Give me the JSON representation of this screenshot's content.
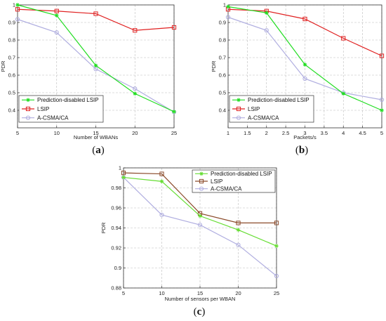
{
  "captions": [
    "(a)",
    "(b)",
    "(c)"
  ],
  "chart_data": [
    {
      "type": "line",
      "xlabel": "Number of WBANs",
      "ylabel": "PDR",
      "xlim": [
        5,
        25
      ],
      "ylim": [
        0.3,
        1
      ],
      "xticks": [
        5,
        10,
        15,
        20,
        25
      ],
      "xtick_labels": [
        "5",
        "10",
        "15",
        "20",
        "25"
      ],
      "yticks": [
        0.4,
        0.5,
        0.6,
        0.7,
        0.8,
        0.9,
        1
      ],
      "ytick_labels": [
        "0.4",
        "0.5",
        "0.6",
        "0.7",
        "0.8",
        "0.9",
        "1"
      ],
      "grid": true,
      "legend_position": "bottom-left",
      "series": [
        {
          "name": "Prediction-disabled LSIP",
          "color": "#22dd22",
          "marker": "star",
          "x": [
            5,
            10,
            15,
            20,
            25
          ],
          "y": [
            1.0,
            0.94,
            0.655,
            0.495,
            0.392
          ]
        },
        {
          "name": "LSIP",
          "color": "#e02020",
          "marker": "square",
          "x": [
            5,
            10,
            15,
            20,
            25
          ],
          "y": [
            0.975,
            0.965,
            0.95,
            0.855,
            0.872
          ]
        },
        {
          "name": "A-CSMA/CA",
          "color": "#b0aee0",
          "marker": "circle",
          "x": [
            5,
            10,
            15,
            20,
            25
          ],
          "y": [
            0.918,
            0.843,
            0.635,
            0.523,
            0.39
          ]
        }
      ]
    },
    {
      "type": "line",
      "xlabel": "Packets/s",
      "ylabel": "PDR",
      "xlim": [
        1,
        5
      ],
      "ylim": [
        0.3,
        1
      ],
      "xticks": [
        1,
        1.5,
        2,
        2.5,
        3,
        3.5,
        4,
        4.5,
        5
      ],
      "xtick_labels": [
        "1",
        "1.5",
        "2",
        "2.5",
        "3",
        "3.5",
        "4",
        "4.5",
        "5"
      ],
      "yticks": [
        0.4,
        0.5,
        0.6,
        0.7,
        0.8,
        0.9,
        1
      ],
      "ytick_labels": [
        "0.4",
        "0.5",
        "0.6",
        "0.7",
        "0.8",
        "0.9",
        "1"
      ],
      "grid": true,
      "legend_position": "bottom-left",
      "series": [
        {
          "name": "Prediction-disabled LSIP",
          "color": "#22dd22",
          "marker": "star",
          "x": [
            1,
            2,
            3,
            4,
            5
          ],
          "y": [
            0.99,
            0.955,
            0.66,
            0.495,
            0.4
          ]
        },
        {
          "name": "LSIP",
          "color": "#e02020",
          "marker": "square",
          "x": [
            1,
            2,
            3,
            4,
            5
          ],
          "y": [
            0.975,
            0.965,
            0.92,
            0.81,
            0.71
          ]
        },
        {
          "name": "A-CSMA/CA",
          "color": "#b0aee0",
          "marker": "circle",
          "x": [
            1,
            2,
            3,
            4,
            5
          ],
          "y": [
            0.93,
            0.855,
            0.58,
            0.5,
            0.46
          ]
        }
      ]
    },
    {
      "type": "line",
      "xlabel": "Number of sensors per WBAN",
      "ylabel": "PDR",
      "xlim": [
        5,
        25
      ],
      "ylim": [
        0.88,
        1
      ],
      "xticks": [
        5,
        10,
        15,
        20,
        25
      ],
      "xtick_labels": [
        "5",
        "10",
        "15",
        "20",
        "25"
      ],
      "yticks": [
        0.88,
        0.9,
        0.92,
        0.94,
        0.96,
        0.98,
        1
      ],
      "ytick_labels": [
        "0.88",
        "0.9",
        "0.92",
        "0.94",
        "0.96",
        "0.98",
        "1"
      ],
      "grid": true,
      "legend_position": "top-right",
      "series": [
        {
          "name": "Prediction-disabled LSIP",
          "color": "#66dd33",
          "marker": "star",
          "x": [
            5,
            10,
            15,
            20,
            25
          ],
          "y": [
            0.9905,
            0.9865,
            0.952,
            0.938,
            0.922
          ]
        },
        {
          "name": "LSIP",
          "color": "#8b4a2a",
          "marker": "square",
          "x": [
            5,
            10,
            15,
            20,
            25
          ],
          "y": [
            0.995,
            0.994,
            0.9545,
            0.945,
            0.945
          ]
        },
        {
          "name": "A-CSMA/CA",
          "color": "#b0aee0",
          "marker": "circle",
          "x": [
            5,
            10,
            15,
            20,
            25
          ],
          "y": [
            0.9905,
            0.953,
            0.943,
            0.923,
            0.892
          ]
        }
      ]
    }
  ]
}
